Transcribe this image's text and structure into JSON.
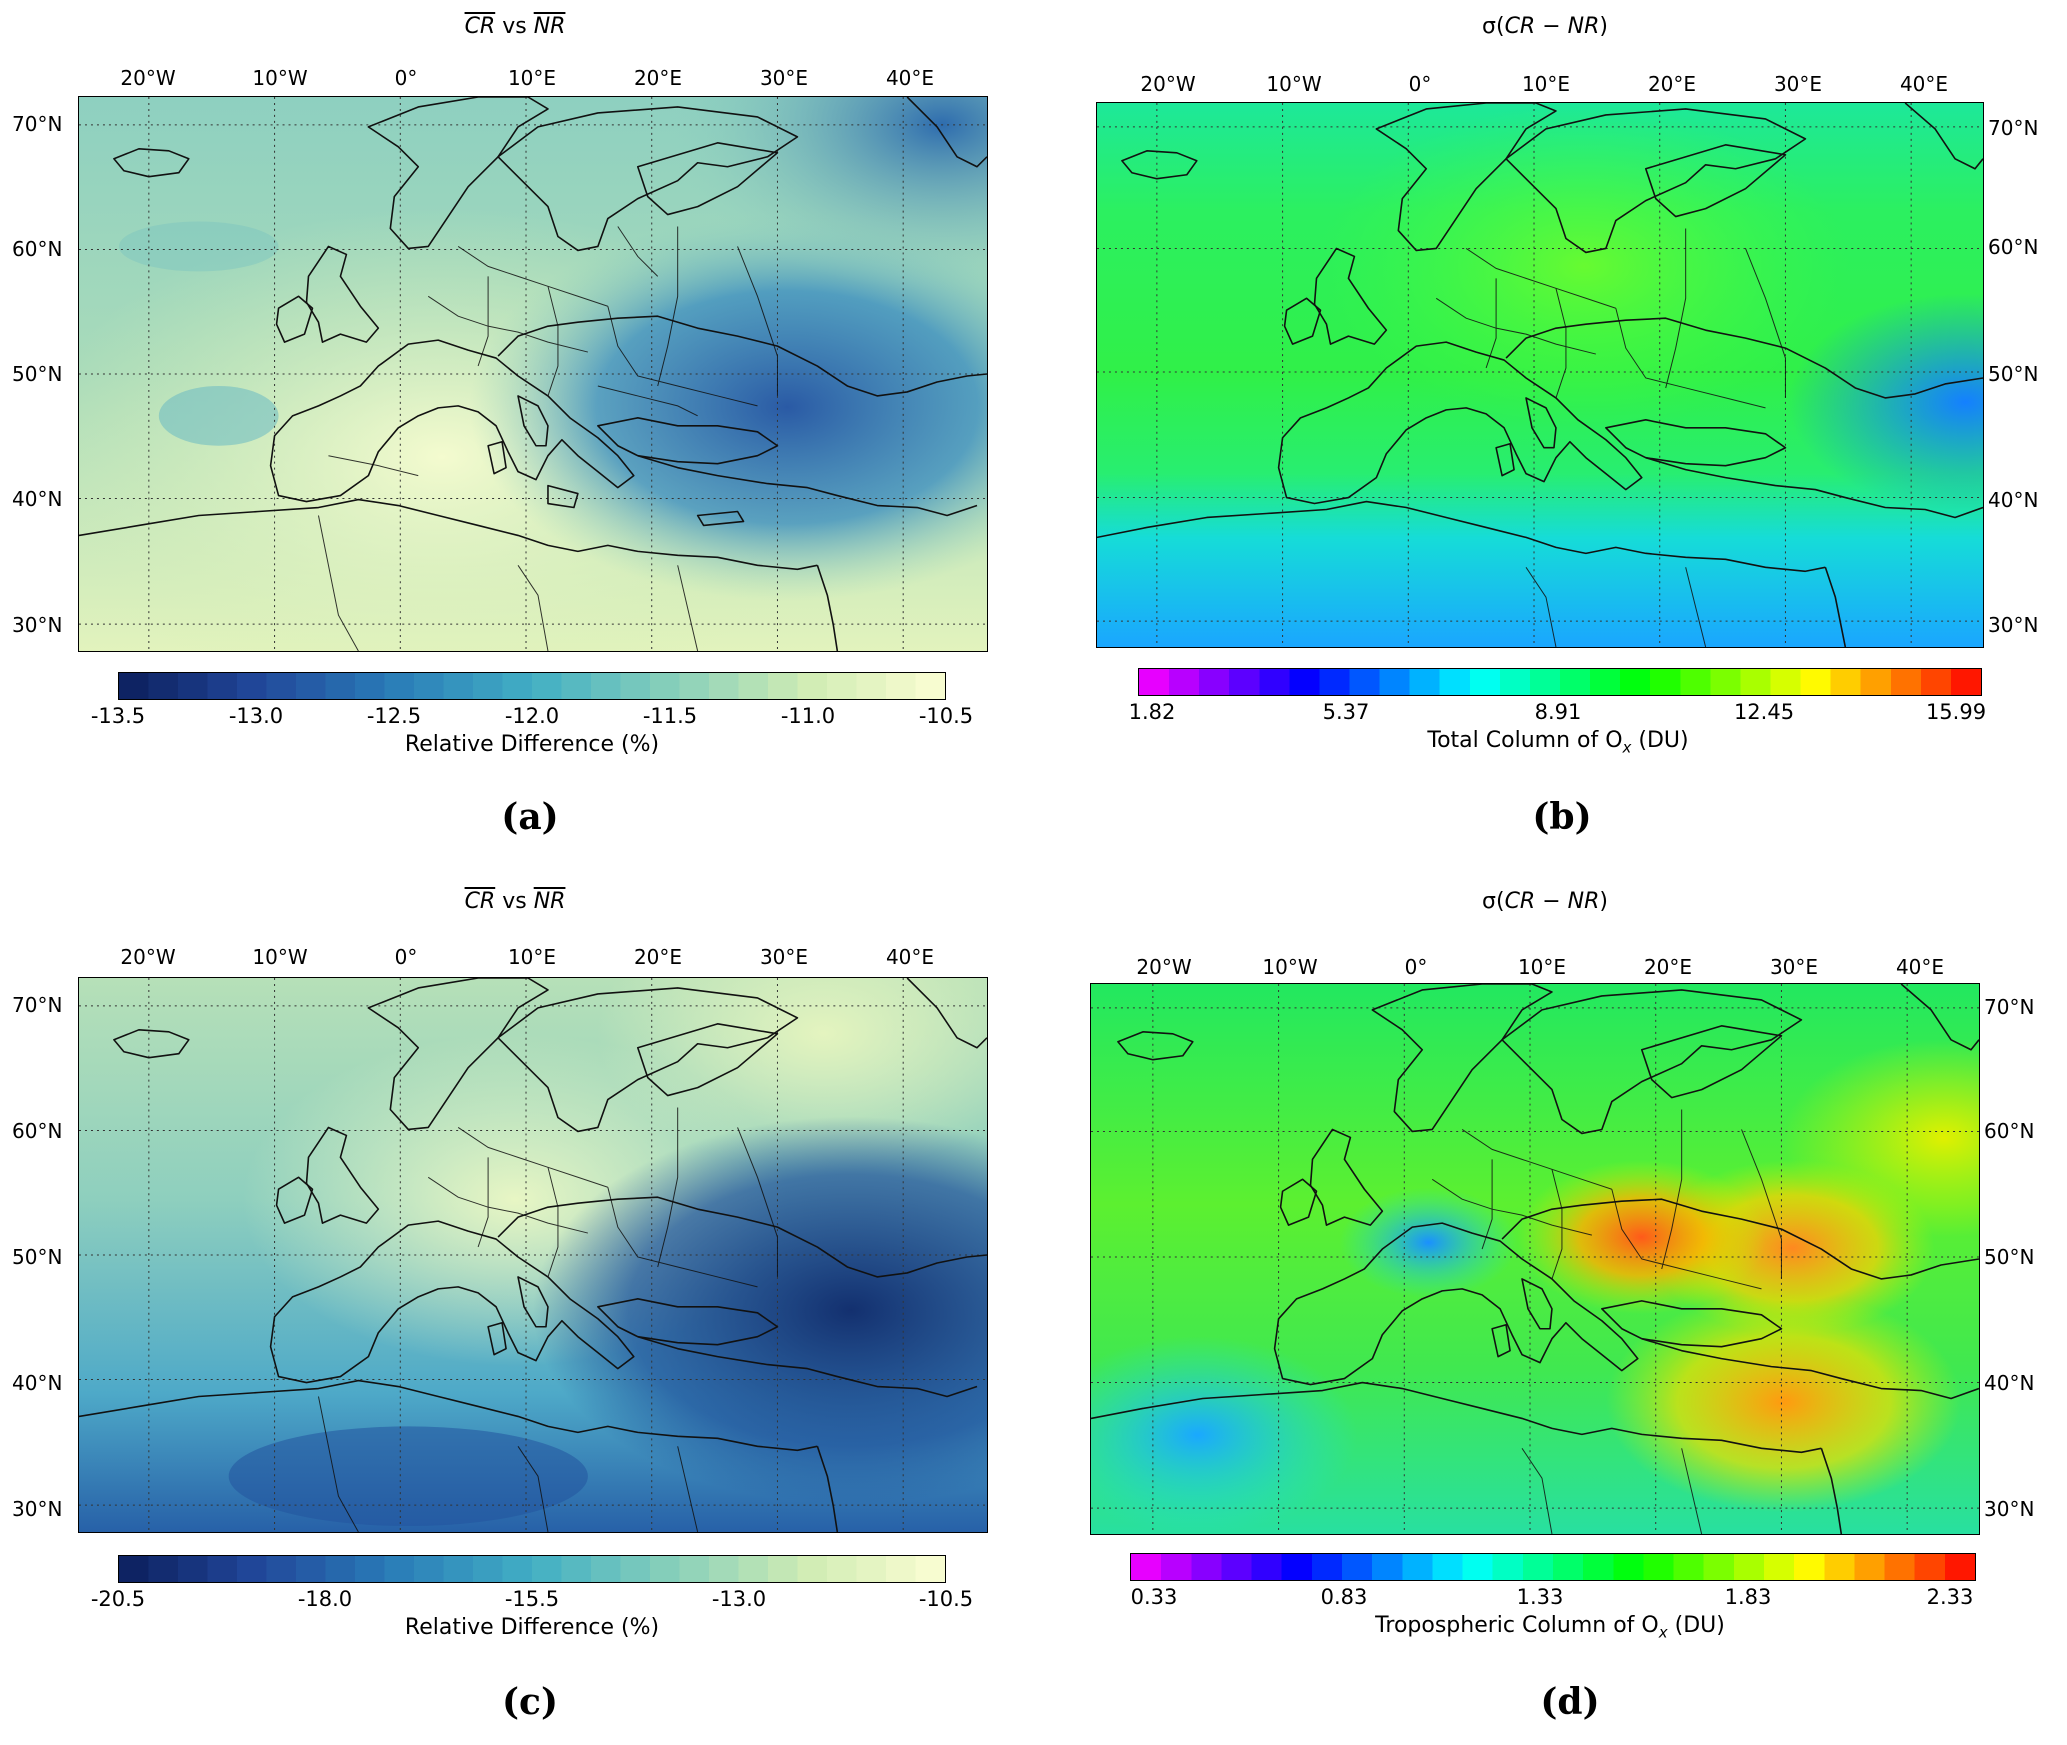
{
  "panels": {
    "a": {
      "title_main": "CR",
      "title_mid": " vs ",
      "title_end": "NR",
      "colorbar_ticks": [
        "-13.5",
        "-13.0",
        "-12.5",
        "-12.0",
        "-11.5",
        "-11.0",
        "-10.5"
      ],
      "colorbar_label": "Relative Difference (%)",
      "panel_label": "(a)",
      "colormap": [
        "#0c1f5c",
        "#21479a",
        "#2a7db8",
        "#41aec4",
        "#86cfba",
        "#d0ecb4",
        "#fcfed3"
      ]
    },
    "b": {
      "title_sigma": "σ(",
      "title_expr": "CR − NR",
      "title_close": ")",
      "colorbar_ticks": [
        "1.82",
        "5.37",
        "8.91",
        "12.45",
        "15.99"
      ],
      "colorbar_label": "Total Column of O",
      "colorbar_label_sub": "x",
      "colorbar_label_unit": " (DU)",
      "panel_label": "(b)",
      "colormap": [
        "#ff00ff",
        "#7a00ff",
        "#0000ff",
        "#0080ff",
        "#00ffff",
        "#00ff80",
        "#00ff00",
        "#80ff00",
        "#ffff00",
        "#ff8000",
        "#ff0000"
      ]
    },
    "c": {
      "title_main": "CR",
      "title_mid": " vs ",
      "title_end": "NR",
      "colorbar_ticks": [
        "-20.5",
        "-18.0",
        "-15.5",
        "-13.0",
        "-10.5"
      ],
      "colorbar_label": "Relative Difference (%)",
      "panel_label": "(c)",
      "colormap": [
        "#0c1f5c",
        "#21479a",
        "#2a7db8",
        "#41aec4",
        "#86cfba",
        "#d0ecb4",
        "#fcfed3"
      ]
    },
    "d": {
      "title_sigma": "σ(",
      "title_expr": "CR − NR",
      "title_close": ")",
      "colorbar_ticks": [
        "0.33",
        "0.83",
        "1.33",
        "1.83",
        "2.33"
      ],
      "colorbar_label": "Tropospheric Column of O",
      "colorbar_label_sub": "x",
      "colorbar_label_unit": " (DU)",
      "panel_label": "(d)",
      "colormap": [
        "#ff00ff",
        "#7a00ff",
        "#0000ff",
        "#0080ff",
        "#00ffff",
        "#00ff80",
        "#00ff00",
        "#80ff00",
        "#ffff00",
        "#ff8000",
        "#ff0000"
      ]
    }
  },
  "lon_labels": [
    "20°W",
    "10°W",
    "0°",
    "10°E",
    "20°E",
    "30°E",
    "40°E"
  ],
  "lat_labels": [
    "70°N",
    "60°N",
    "50°N",
    "40°N",
    "30°N"
  ]
}
